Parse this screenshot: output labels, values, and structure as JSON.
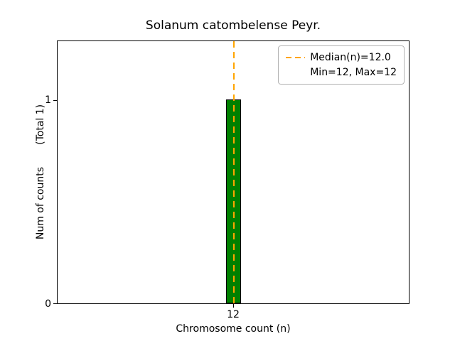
{
  "chart_data": {
    "type": "bar",
    "title": "Solanum catombelense Peyr.",
    "xlabel": "Chromosome count (n)",
    "ylabel": "Num of counts       (Total 1)",
    "categories": [
      "12"
    ],
    "values": [
      1
    ],
    "total_counts": 1,
    "bar": {
      "x": 12,
      "height": 1,
      "fill_color": "#008000",
      "edge_color": "#000000"
    },
    "median_line": {
      "value": 12.0,
      "color": "#FFA500",
      "style": "dashed",
      "orientation": "vertical"
    },
    "stats": {
      "median": 12.0,
      "min": 12,
      "max": 12
    },
    "xticks": [
      "12"
    ],
    "yticks": [
      "0",
      "1"
    ],
    "ylim": [
      0,
      1.3
    ],
    "grid": false,
    "legend": {
      "position": "upper right",
      "items": [
        {
          "label": "Median(n)=12.0",
          "marker": "orange-dashed-line"
        },
        {
          "label": "Min=12, Max=12",
          "marker": "none"
        }
      ]
    }
  }
}
